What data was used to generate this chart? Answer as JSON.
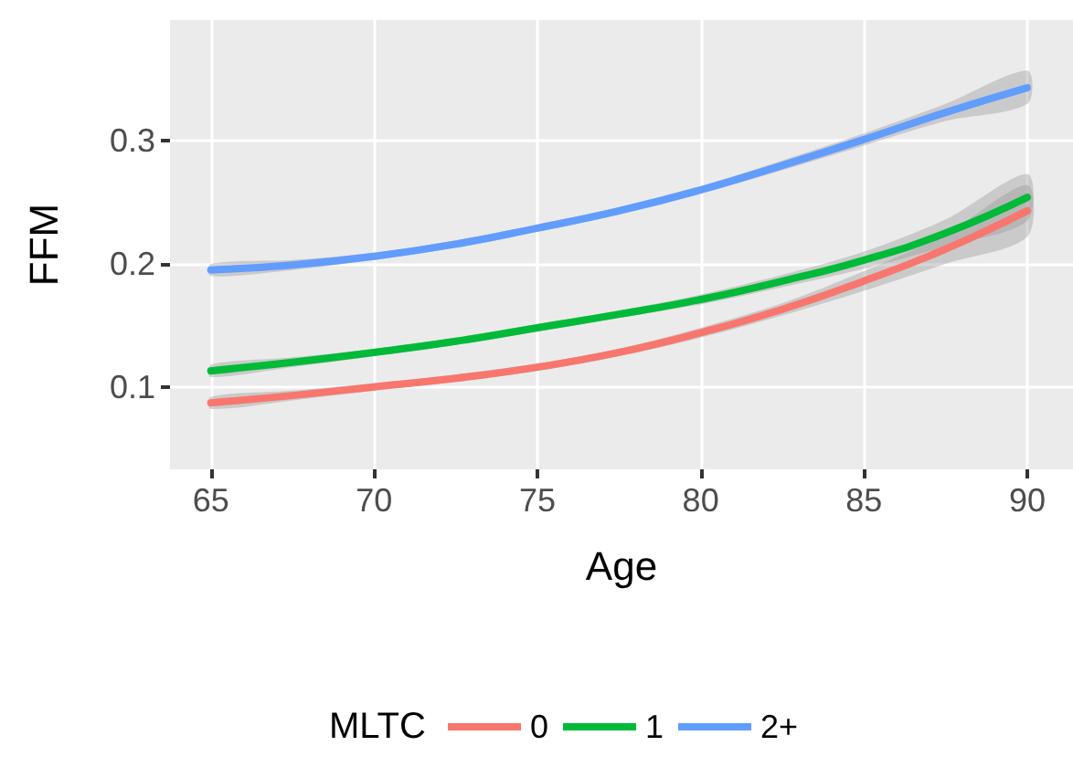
{
  "chart_data": {
    "type": "line",
    "xlabel": "Age",
    "ylabel": "FFM",
    "legend_title": "MLTC",
    "legend": "bottom",
    "grid": true,
    "marker": "none",
    "line_style": "solid",
    "x": [
      65,
      67.5,
      70,
      72.5,
      75,
      77.5,
      80,
      82.5,
      85,
      87.5,
      90
    ],
    "xlim": [
      63.75,
      91.4
    ],
    "xticks": [
      65,
      70,
      75,
      80,
      85,
      90
    ],
    "ylim": [
      0.033,
      0.398
    ],
    "yticks": [
      0.1,
      0.2,
      0.3
    ],
    "series": [
      {
        "name": "0",
        "color": "#f8766d",
        "values": [
          0.087,
          0.093,
          0.1,
          0.107,
          0.116,
          0.128,
          0.144,
          0.163,
          0.186,
          0.212,
          0.243
        ],
        "lower": [
          0.082,
          0.089,
          0.097,
          0.104,
          0.113,
          0.125,
          0.14,
          0.158,
          0.178,
          0.2,
          0.222
        ],
        "upper": [
          0.092,
          0.097,
          0.103,
          0.11,
          0.119,
          0.131,
          0.148,
          0.168,
          0.194,
          0.224,
          0.264
        ]
      },
      {
        "name": "1",
        "color": "#00ba38",
        "values": [
          0.113,
          0.12,
          0.128,
          0.137,
          0.148,
          0.159,
          0.171,
          0.186,
          0.203,
          0.225,
          0.254
        ],
        "lower": [
          0.108,
          0.116,
          0.125,
          0.134,
          0.145,
          0.156,
          0.167,
          0.181,
          0.196,
          0.214,
          0.235
        ],
        "upper": [
          0.118,
          0.124,
          0.131,
          0.14,
          0.151,
          0.162,
          0.175,
          0.191,
          0.21,
          0.236,
          0.273
        ]
      },
      {
        "name": "2+",
        "color": "#619cff",
        "values": [
          0.195,
          0.199,
          0.206,
          0.216,
          0.229,
          0.243,
          0.26,
          0.28,
          0.301,
          0.323,
          0.343
        ],
        "lower": [
          0.19,
          0.195,
          0.203,
          0.213,
          0.226,
          0.24,
          0.257,
          0.276,
          0.296,
          0.316,
          0.33
        ],
        "upper": [
          0.2,
          0.203,
          0.209,
          0.219,
          0.232,
          0.246,
          0.263,
          0.284,
          0.306,
          0.33,
          0.357
        ]
      }
    ]
  }
}
